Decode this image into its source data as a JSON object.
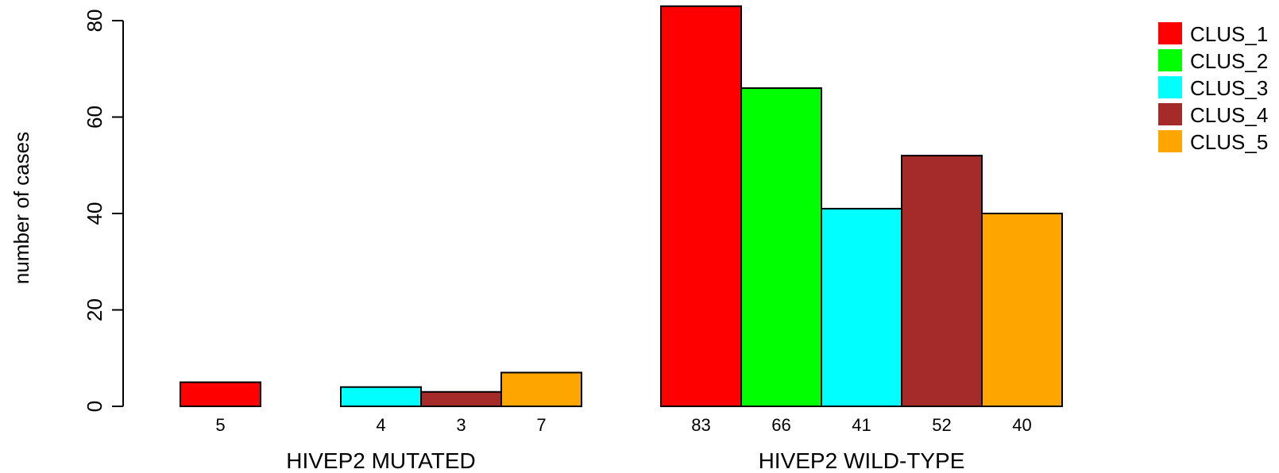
{
  "chart_data": {
    "type": "bar",
    "title": "",
    "xlabel": "",
    "ylabel": "number of cases",
    "ylim": [
      0,
      80
    ],
    "yticks": [
      0,
      20,
      40,
      60,
      80
    ],
    "grid": false,
    "legend_position": "top-right",
    "groups": [
      {
        "label": "HIVEP2 MUTATED",
        "values": [
          5,
          0,
          4,
          3,
          7
        ],
        "value_labels": [
          "5",
          "",
          "4",
          "3",
          "7"
        ]
      },
      {
        "label": "HIVEP2 WILD-TYPE",
        "values": [
          83,
          66,
          41,
          52,
          40
        ],
        "value_labels": [
          "83",
          "66",
          "41",
          "52",
          "40"
        ]
      }
    ],
    "series": [
      {
        "name": "CLUS_1",
        "color": "#ff0000"
      },
      {
        "name": "CLUS_2",
        "color": "#00ff00"
      },
      {
        "name": "CLUS_3",
        "color": "#00ffff"
      },
      {
        "name": "CLUS_4",
        "color": "#a52a2a"
      },
      {
        "name": "CLUS_5",
        "color": "#ffa500"
      }
    ]
  }
}
